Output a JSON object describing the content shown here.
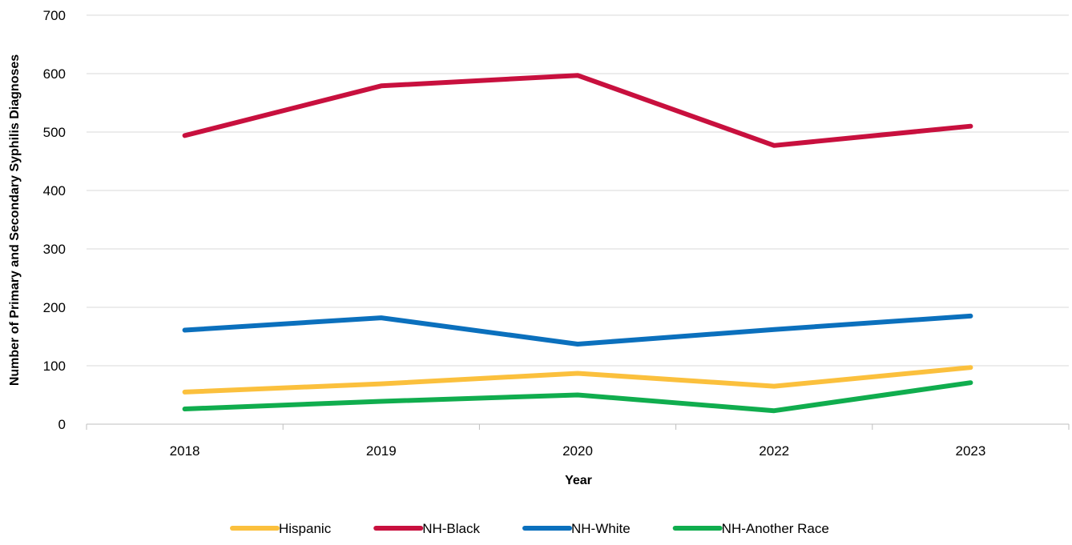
{
  "chart_data": {
    "type": "line",
    "title": "",
    "xlabel": "Year",
    "ylabel": "Number of Primary and Secondary Syphilis Diagnoses",
    "categories": [
      "2018",
      "2019",
      "2020",
      "2022",
      "2023"
    ],
    "ylim": [
      0,
      700
    ],
    "yticks": [
      0,
      100,
      200,
      300,
      400,
      500,
      600,
      700
    ],
    "grid": "horizontal",
    "legend_position": "bottom",
    "series": [
      {
        "name": "Hispanic",
        "color": "#FBC03D",
        "values": [
          55,
          69,
          87,
          65,
          97
        ]
      },
      {
        "name": "NH-Black",
        "color": "#C8103E",
        "values": [
          494,
          579,
          597,
          477,
          510
        ]
      },
      {
        "name": "NH-White",
        "color": "#0B70BD",
        "values": [
          161,
          182,
          137,
          162,
          185
        ]
      },
      {
        "name": "NH-Another Race",
        "color": "#10AD4E",
        "values": [
          26,
          39,
          50,
          23,
          71
        ]
      }
    ]
  }
}
